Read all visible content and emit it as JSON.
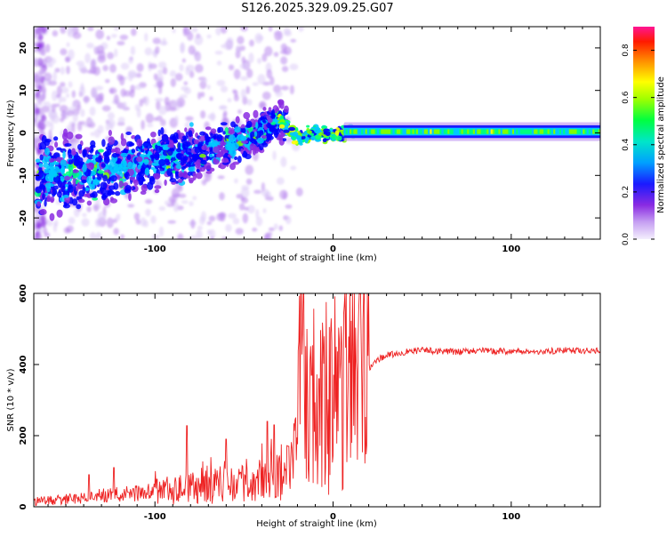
{
  "title": "S126.2025.329.09.25.G07",
  "chart_data": [
    {
      "type": "heatmap",
      "xlabel": "Height of straight line (km)",
      "ylabel": "Frequency (Hz)",
      "xlim": [
        -168,
        150
      ],
      "ylim": [
        -25,
        25
      ],
      "xticks": [
        -100,
        0,
        100
      ],
      "yticks": [
        -20,
        -10,
        0,
        10,
        20
      ],
      "colorbar": {
        "label": "Normalized spectral amplitude",
        "range": [
          0,
          0.9
        ],
        "ticks": [
          "0.0",
          "0.2",
          "0.4",
          "0.6",
          "0.8"
        ],
        "colors": [
          "#e8dcfa",
          "#8a2be2",
          "#0000ff",
          "#00c8ff",
          "#00ff80",
          "#80ff00",
          "#ffff00",
          "#ff8000",
          "#ff0000",
          "#ff1493"
        ]
      },
      "ridge": [
        {
          "x": -160,
          "f": -10
        },
        {
          "x": -140,
          "f": -9.5
        },
        {
          "x": -120,
          "f": -8
        },
        {
          "x": -100,
          "f": -6.5
        },
        {
          "x": -80,
          "f": -5
        },
        {
          "x": -60,
          "f": -3
        },
        {
          "x": -45,
          "f": -1
        },
        {
          "x": -35,
          "f": 2
        },
        {
          "x": -30,
          "f": 3.5
        },
        {
          "x": -25,
          "f": 0.5
        },
        {
          "x": -18,
          "f": -1
        },
        {
          "x": -10,
          "f": 0
        },
        {
          "x": 0,
          "f": -0.5
        },
        {
          "x": 10,
          "f": 0.5
        },
        {
          "x": 20,
          "f": 0.3
        },
        {
          "x": 150,
          "f": 0.3
        }
      ],
      "coherent_band": {
        "x_start": 10,
        "x_end": 150,
        "f_center": 0.3,
        "amplitude": 0.45
      }
    },
    {
      "type": "line",
      "xlabel": "Height of straight line (km)",
      "ylabel": "SNR (10 * v/v)",
      "xlim": [
        -168,
        150
      ],
      "ylim": [
        0,
        600
      ],
      "xticks": [
        -100,
        0,
        100
      ],
      "yticks": [
        0,
        200,
        400,
        600
      ],
      "series": [
        {
          "name": "SNR",
          "color": "#ee2222",
          "x": [
            -168,
            -150,
            -135,
            -120,
            -105,
            -95,
            -85,
            -75,
            -65,
            -55,
            -45,
            -38,
            -32,
            -25,
            -20,
            -18,
            -15,
            -10,
            -5,
            0,
            5,
            10,
            15,
            20,
            25,
            30,
            40,
            50,
            60,
            70,
            80,
            90,
            100,
            110,
            120,
            130,
            140,
            150
          ],
          "values": [
            15,
            20,
            30,
            35,
            40,
            45,
            50,
            55,
            60,
            60,
            65,
            80,
            95,
            90,
            150,
            600,
            230,
            270,
            300,
            320,
            330,
            350,
            370,
            390,
            415,
            425,
            435,
            440,
            438,
            435,
            440,
            437,
            438,
            436,
            437,
            440,
            438,
            440
          ],
          "spikes": [
            {
              "x": -137,
              "v": 90
            },
            {
              "x": -123,
              "v": 110
            },
            {
              "x": -82,
              "v": 228
            },
            {
              "x": -60,
              "v": 190
            },
            {
              "x": -37,
              "v": 240
            },
            {
              "x": -33,
              "v": 230
            },
            {
              "x": -25,
              "v": 170
            },
            {
              "x": -18,
              "v": 600
            },
            {
              "x": -12,
              "v": 370
            },
            {
              "x": -8,
              "v": 360
            }
          ]
        }
      ]
    }
  ]
}
